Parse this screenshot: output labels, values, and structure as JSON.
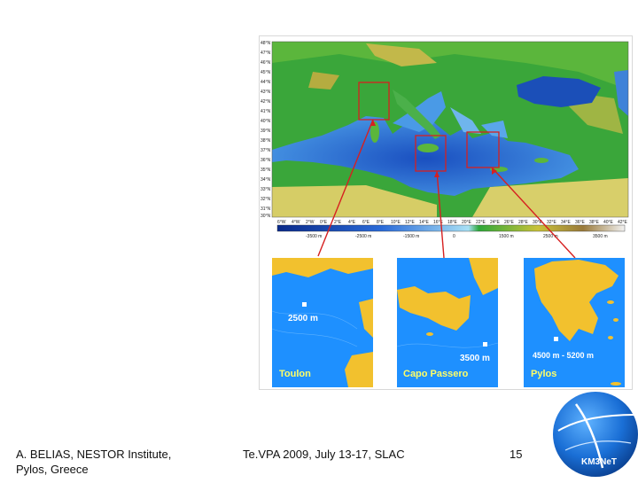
{
  "slide": {
    "footer_left_line1": "A. BELIAS, NESTOR Institute,",
    "footer_left_line2": "Pylos, Greece",
    "footer_center": "Te.VPA 2009, July 13-17, SLAC",
    "page_number": "15",
    "logo_text": "KM3NeT"
  },
  "map": {
    "lat_labels": [
      "48°N",
      "47°N",
      "46°N",
      "45°N",
      "44°N",
      "43°N",
      "42°N",
      "41°N",
      "40°N",
      "39°N",
      "38°N",
      "37°N",
      "36°N",
      "35°N",
      "34°N",
      "33°N",
      "32°N",
      "31°N",
      "30°N"
    ],
    "lon_labels": [
      "6°W",
      "4°W",
      "2°W",
      "0°E",
      "2°E",
      "4°E",
      "6°E",
      "8°E",
      "10°E",
      "12°E",
      "14°E",
      "16°E",
      "18°E",
      "20°E",
      "22°E",
      "24°E",
      "26°E",
      "28°E",
      "30°E",
      "32°E",
      "34°E",
      "36°E",
      "38°E",
      "40°E",
      "42°E"
    ],
    "colorbar_labels": [
      "-3500 m",
      "-2500 m",
      "-1500 m",
      "0",
      "1500 m",
      "2500 m",
      "3500 m"
    ]
  },
  "insets": [
    {
      "site": "Toulon",
      "depth": "2500 m"
    },
    {
      "site": "Capo Passero",
      "depth": "3500 m"
    },
    {
      "site": "Pylos",
      "depth": "4500 m - 5200 m"
    }
  ],
  "colors": {
    "deep_sea": "#1d5ec9",
    "shallow_sea": "#8fd0ee",
    "land_low": "#2fa83a",
    "land_high": "#c9c23a",
    "inset_sea": "#1e90ff",
    "inset_land": "#f2c12e",
    "marker_red": "#d62020"
  }
}
